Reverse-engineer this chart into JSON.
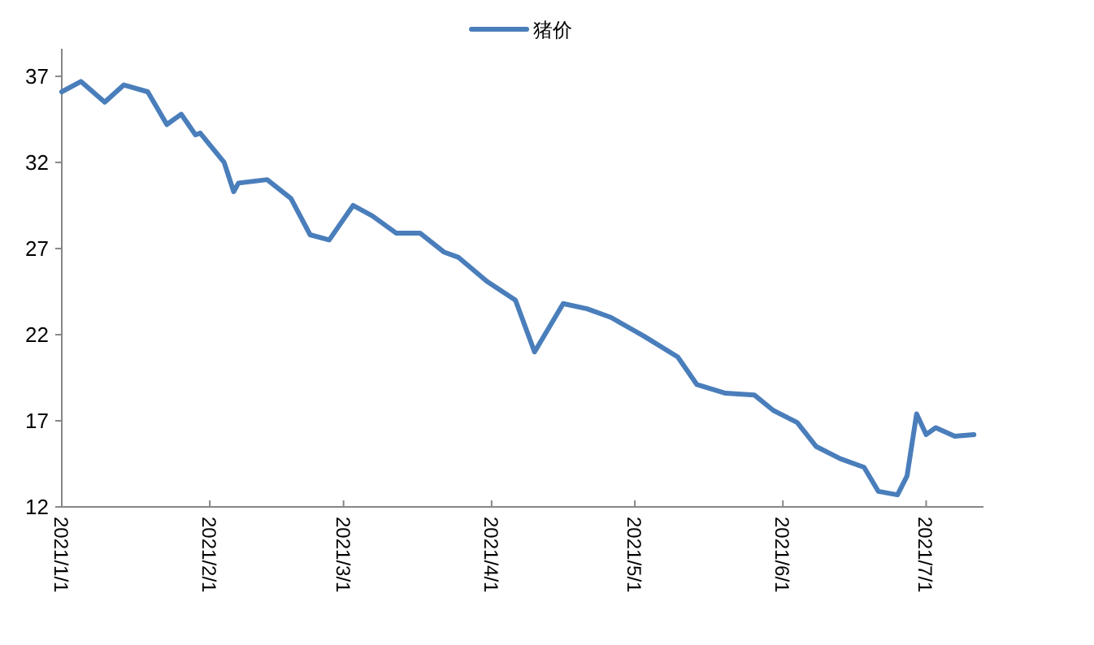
{
  "chart_data": {
    "type": "line",
    "series": [
      {
        "name": "猪价",
        "color": "#4a7ebb",
        "x": [
          "2021-01-01",
          "2021-01-05",
          "2021-01-10",
          "2021-01-14",
          "2021-01-19",
          "2021-01-23",
          "2021-01-26",
          "2021-01-29",
          "2021-01-30",
          "2021-02-04",
          "2021-02-06",
          "2021-02-07",
          "2021-02-13",
          "2021-02-18",
          "2021-02-22",
          "2021-02-26",
          "2021-03-03",
          "2021-03-07",
          "2021-03-12",
          "2021-03-17",
          "2021-03-22",
          "2021-03-25",
          "2021-03-31",
          "2021-04-06",
          "2021-04-10",
          "2021-04-16",
          "2021-04-21",
          "2021-04-26",
          "2021-05-03",
          "2021-05-10",
          "2021-05-14",
          "2021-05-20",
          "2021-05-26",
          "2021-05-30",
          "2021-06-04",
          "2021-06-08",
          "2021-06-13",
          "2021-06-18",
          "2021-06-21",
          "2021-06-25",
          "2021-06-27",
          "2021-06-29",
          "2021-07-01",
          "2021-07-03",
          "2021-07-07",
          "2021-07-11"
        ],
        "values": [
          36.1,
          36.7,
          35.5,
          36.5,
          36.1,
          34.2,
          34.8,
          33.6,
          33.7,
          32.0,
          30.3,
          30.8,
          31.0,
          29.9,
          27.8,
          27.5,
          29.5,
          28.9,
          27.9,
          27.9,
          26.8,
          26.5,
          25.1,
          24.0,
          21.0,
          23.8,
          23.5,
          23.0,
          21.9,
          20.7,
          19.1,
          18.6,
          18.5,
          17.6,
          16.9,
          15.5,
          14.8,
          14.3,
          12.9,
          12.7,
          13.8,
          17.4,
          16.2,
          16.6,
          16.1,
          16.2
        ]
      }
    ],
    "xlim": [
      "2021-01-01",
      "2021-07-13"
    ],
    "xticks": [
      {
        "value": "2021-01-01",
        "label": "2021/1/1"
      },
      {
        "value": "2021-02-01",
        "label": "2021/2/1"
      },
      {
        "value": "2021-03-01",
        "label": "2021/3/1"
      },
      {
        "value": "2021-04-01",
        "label": "2021/4/1"
      },
      {
        "value": "2021-05-01",
        "label": "2021/5/1"
      },
      {
        "value": "2021-06-01",
        "label": "2021/6/1"
      },
      {
        "value": "2021-07-01",
        "label": "2021/7/1"
      }
    ],
    "ylim": [
      12,
      38.6
    ],
    "yticks": [
      12,
      17,
      22,
      27,
      32,
      37
    ],
    "legend": "top right"
  }
}
